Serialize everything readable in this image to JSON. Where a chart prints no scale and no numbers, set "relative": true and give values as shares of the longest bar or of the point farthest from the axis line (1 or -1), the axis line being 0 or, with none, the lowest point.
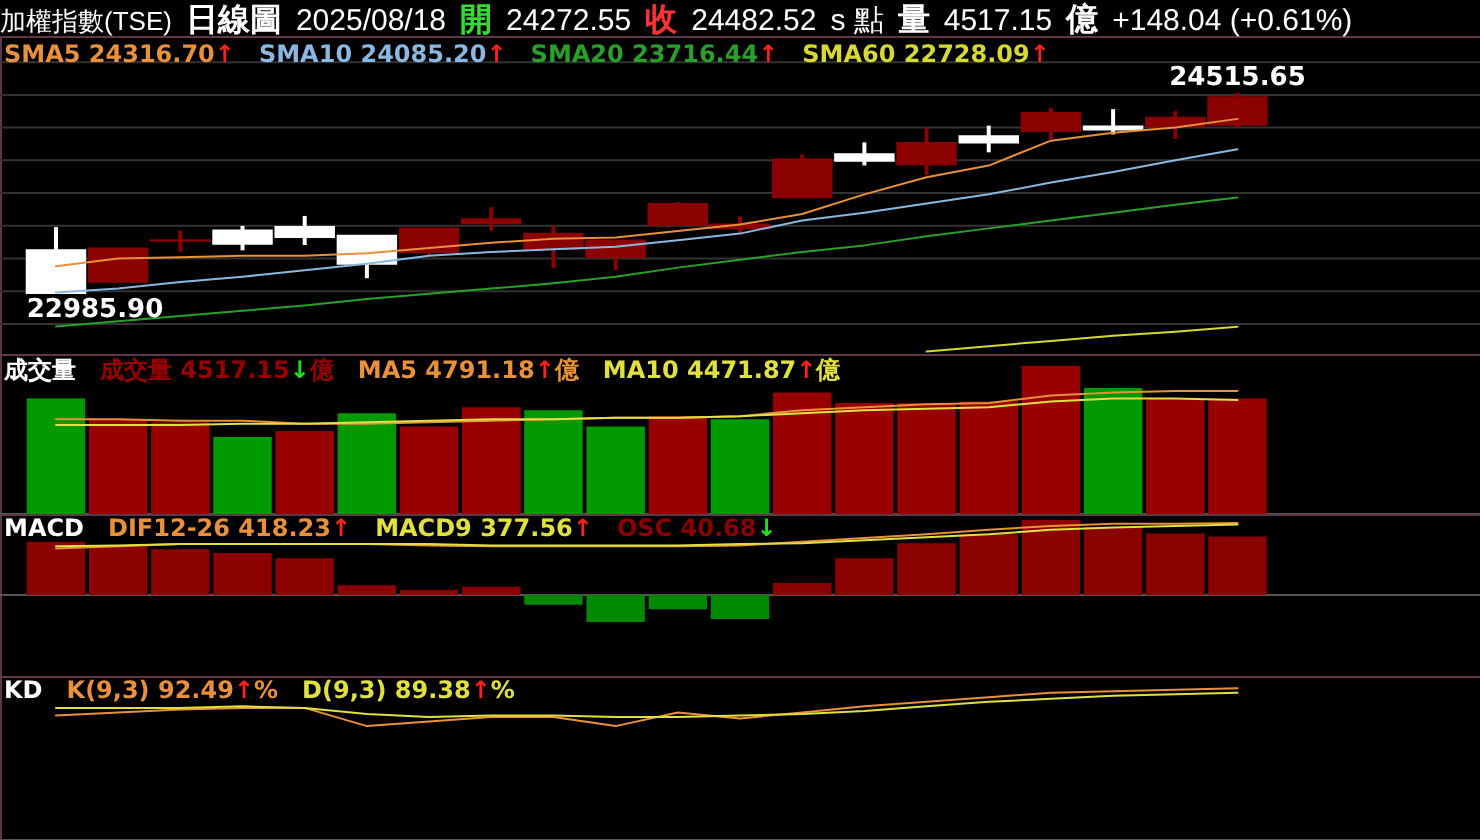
{
  "chart_data": [
    {
      "type": "candlestick",
      "title": "加權指數(TSE)",
      "annotations": [
        "日線圖",
        "2025/08/18",
        "開",
        "24272.55",
        "收",
        "24482.52",
        "s 點",
        "量",
        "4517.15",
        "億",
        "+148.04 (+0.61%)",
        {
          "text": "24515.65",
          "y": 24515.65
        },
        {
          "text": "22985.90",
          "y": 22985.9
        }
      ],
      "categories": [
        null,
        null,
        null,
        null,
        null,
        null,
        null,
        null,
        null,
        null,
        null,
        null,
        null,
        null,
        null,
        null,
        null,
        null,
        null,
        null
      ],
      "ohlc": [
        [
          23312,
          23490,
          22985.9,
          22985.9
        ],
        [
          23073,
          23327,
          23073,
          23327
        ],
        [
          23385,
          23464,
          23301,
          23390
        ],
        [
          23464,
          23499,
          23312,
          23362
        ],
        [
          23490,
          23575,
          23353,
          23414
        ],
        [
          23423,
          23423,
          23099,
          23210
        ],
        [
          23297,
          23479,
          23271,
          23479
        ],
        [
          23520,
          23642,
          23464,
          23550
        ],
        [
          23327,
          23499,
          23175,
          23438
        ],
        [
          23262,
          23388,
          23160,
          23388
        ],
        [
          23505,
          23681,
          23505,
          23666
        ],
        [
          23480,
          23570,
          23434,
          23510
        ],
        [
          23718,
          24046,
          23718,
          24007
        ],
        [
          24046,
          24137,
          23961,
          23996
        ],
        [
          23970,
          24250,
          23885,
          24133
        ],
        [
          24183,
          24265,
          24061,
          24137
        ],
        [
          24224,
          24402,
          24163,
          24361
        ],
        [
          24259,
          24391,
          24198,
          24235
        ],
        [
          24259,
          24376,
          24163,
          24326
        ],
        [
          24272.55,
          24515.65,
          24250,
          24482.52
        ]
      ],
      "colors": [
        "#ffffff",
        "#8b0000",
        "#8b0000",
        "#ffffff",
        "#ffffff",
        "#ffffff",
        "#8b0000",
        "#8b0000",
        "#8b0000",
        "#8b0000",
        "#8b0000",
        "#8b0000",
        "#8b0000",
        "#ffffff",
        "#8b0000",
        "#ffffff",
        "#8b0000",
        "#ffffff",
        "#8b0000",
        "#8b0000"
      ],
      "series": [
        {
          "name": "SMA5 24316.70↑",
          "type": "line",
          "color": "#e8903a",
          "values": [
            23190,
            23250,
            23260,
            23270,
            23270,
            23290,
            23330,
            23370,
            23400,
            23410,
            23460,
            23510,
            23590,
            23740,
            23870,
            23960,
            24150,
            24210,
            24250,
            24316.7
          ]
        },
        {
          "name": "SMA10 24085.20↑",
          "type": "line",
          "color": "#8ab8e0",
          "values": [
            22990,
            23020,
            23070,
            23110,
            23160,
            23210,
            23270,
            23300,
            23320,
            23340,
            23390,
            23440,
            23540,
            23600,
            23670,
            23740,
            23830,
            23910,
            24000,
            24085.2
          ]
        },
        {
          "name": "SMA20 23716.44↑",
          "type": "line",
          "color": "#2aa02a",
          "values": [
            22730,
            22770,
            22810,
            22850,
            22890,
            22940,
            22980,
            23020,
            23060,
            23110,
            23180,
            23240,
            23300,
            23350,
            23420,
            23480,
            23540,
            23600,
            23660,
            23716.44
          ]
        },
        {
          "name": "SMA60 22728.09↑",
          "type": "line",
          "color": "#d8d832",
          "values": [
            null,
            null,
            null,
            null,
            null,
            null,
            null,
            null,
            null,
            null,
            null,
            null,
            null,
            null,
            22540,
            22580,
            22620,
            22660,
            22690,
            22728.09
          ]
        }
      ],
      "ylim": [
        22520,
        24950
      ],
      "yticks": [
        {
          "value": 22750,
          "label": null
        },
        {
          "value": 23000,
          "label": null
        },
        {
          "value": 23250,
          "label": null
        },
        {
          "value": 23500,
          "label": null
        },
        {
          "value": 23750,
          "label": null
        },
        {
          "value": 24000,
          "label": null
        },
        {
          "value": 24250,
          "label": null
        },
        {
          "value": 24500,
          "label": null
        },
        {
          "value": 24750,
          "label": null
        }
      ],
      "grid": "y",
      "legend": "top left"
    },
    {
      "type": "bar",
      "title": "成交量",
      "relative": true,
      "legend": "top left",
      "categories": [
        null,
        null,
        null,
        null,
        null,
        null,
        null,
        null,
        null,
        null,
        null,
        null,
        null,
        null,
        null,
        null,
        null,
        null,
        null,
        null
      ],
      "series": [
        {
          "name": "成交量 4517.15↓億",
          "type": "bar",
          "colors": [
            "#009900",
            "#990000",
            "#990000",
            "#009900",
            "#990000",
            "#009900",
            "#990000",
            "#990000",
            "#009900",
            "#009900",
            "#990000",
            "#009900",
            "#990000",
            "#990000",
            "#990000",
            "#990000",
            "#990000",
            "#009900",
            "#990000",
            "#990000"
          ],
          "values": [
            0.78,
            0.64,
            0.62,
            0.52,
            0.56,
            0.68,
            0.59,
            0.72,
            0.7,
            0.59,
            0.66,
            0.64,
            0.82,
            0.75,
            0.75,
            0.76,
            1,
            0.85,
            0.78,
            0.78
          ]
        },
        {
          "name": "MA5 4791.18↑億",
          "type": "line",
          "color": "#e8903a",
          "values": [
            0.64,
            0.64,
            0.63,
            0.63,
            0.61,
            0.61,
            0.62,
            0.63,
            0.64,
            0.65,
            0.65,
            0.66,
            0.7,
            0.72,
            0.74,
            0.75,
            0.8,
            0.82,
            0.83,
            0.83
          ]
        },
        {
          "name": "MA10 4471.87↑億",
          "type": "line",
          "color": "#e0e040",
          "values": [
            0.6,
            0.6,
            0.6,
            0.61,
            0.61,
            0.62,
            0.63,
            0.64,
            0.64,
            0.65,
            0.65,
            0.66,
            0.68,
            0.7,
            0.71,
            0.72,
            0.76,
            0.78,
            0.78,
            0.77
          ]
        }
      ]
    },
    {
      "type": "bar",
      "title": "MACD",
      "relative": true,
      "categories": [
        null,
        null,
        null,
        null,
        null,
        null,
        null,
        null,
        null,
        null,
        null,
        null,
        null,
        null,
        null,
        null,
        null,
        null,
        null,
        null
      ],
      "series": [
        {
          "name": "DIF12-26 418.23↑",
          "type": "line",
          "color": "#e8903a",
          "values": [
            0.62,
            0.65,
            0.68,
            0.68,
            0.68,
            0.68,
            0.66,
            0.65,
            0.65,
            0.65,
            0.65,
            0.66,
            0.71,
            0.76,
            0.81,
            0.87,
            0.92,
            0.95,
            0.95,
            0.96
          ]
        },
        {
          "name": "MACD9 377.56↑",
          "type": "line",
          "color": "#e0e040",
          "values": [
            0.65,
            0.66,
            0.68,
            0.68,
            0.68,
            0.68,
            0.68,
            0.66,
            0.66,
            0.66,
            0.66,
            0.68,
            0.69,
            0.73,
            0.77,
            0.81,
            0.87,
            0.9,
            0.92,
            0.94
          ]
        },
        {
          "name": "OSC 40.68↓",
          "type": "bar",
          "colors": [
            "#8b0000",
            "#8b0000",
            "#8b0000",
            "#8b0000",
            "#8b0000",
            "#8b0000",
            "#8b0000",
            "#8b0000",
            "#008800",
            "#008800",
            "#008800",
            "#008800",
            "#8b0000",
            "#8b0000",
            "#8b0000",
            "#8b0000",
            "#8b0000",
            "#8b0000",
            "#8b0000",
            "#8b0000"
          ],
          "values": [
            0.71,
            0.65,
            0.61,
            0.56,
            0.49,
            0.13,
            0.07,
            0.11,
            -0.13,
            -0.36,
            -0.19,
            -0.32,
            0.16,
            0.49,
            0.69,
            0.81,
            1,
            0.91,
            0.82,
            0.78
          ]
        }
      ]
    },
    {
      "type": "line",
      "title": "KD",
      "relative": true,
      "legend": "top left",
      "categories": [
        null,
        null,
        null,
        null,
        null,
        null,
        null,
        null,
        null,
        null,
        null,
        null,
        null,
        null,
        null,
        null,
        null,
        null,
        null,
        null
      ],
      "series": [
        {
          "name": "K(9,3) 92.49↑%",
          "color": "#e8903a",
          "values": [
            0.82,
            0.84,
            0.86,
            0.87,
            0.87,
            0.75,
            0.78,
            0.81,
            0.81,
            0.75,
            0.84,
            0.8,
            0.84,
            0.88,
            0.91,
            0.94,
            0.97,
            0.98,
            0.99,
            1
          ]
        },
        {
          "name": "D(9,3) 89.38↑%",
          "color": "#e0e040",
          "values": [
            0.87,
            0.87,
            0.87,
            0.88,
            0.87,
            0.83,
            0.81,
            0.82,
            0.82,
            0.81,
            0.81,
            0.82,
            0.83,
            0.85,
            0.88,
            0.91,
            0.93,
            0.95,
            0.96,
            0.97
          ]
        }
      ]
    }
  ]
}
